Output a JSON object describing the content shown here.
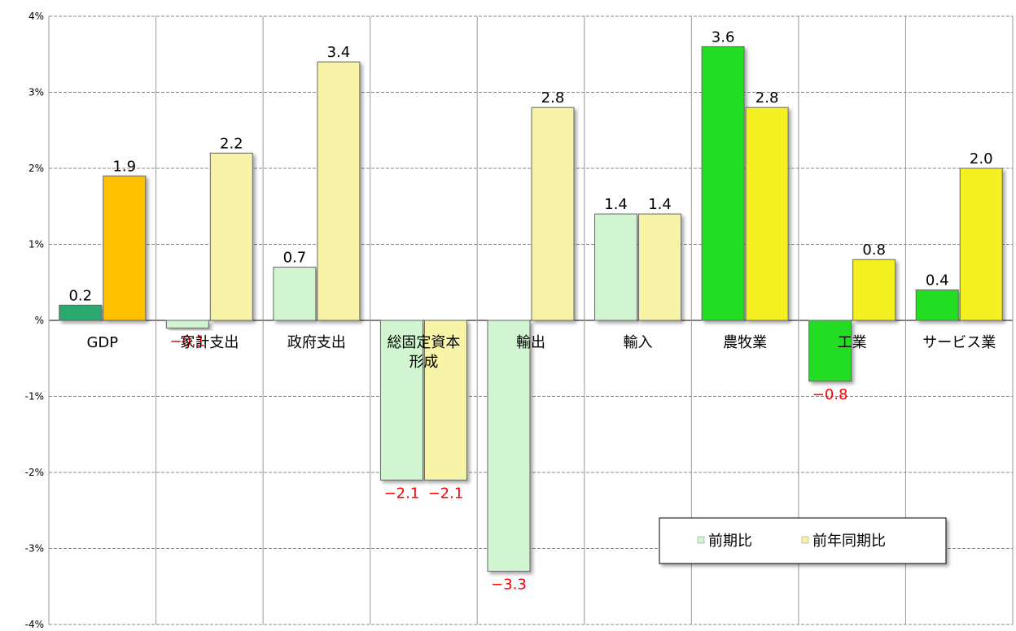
{
  "chart_data": {
    "type": "bar",
    "title": "",
    "xlabel": "",
    "ylabel": "",
    "categories": [
      "GDP",
      "家計支出",
      "政府支出",
      "総固定資本\n形成",
      "輸出",
      "輸入",
      "農牧業",
      "工業",
      "サービス業"
    ],
    "series": [
      {
        "name": "前期比",
        "values": [
          0.2,
          -0.1,
          0.7,
          -2.1,
          -3.3,
          1.4,
          3.6,
          -0.8,
          0.4
        ]
      },
      {
        "name": "前年同期比",
        "values": [
          1.9,
          2.2,
          3.4,
          -2.1,
          2.8,
          1.4,
          2.8,
          0.8,
          2.0
        ]
      }
    ],
    "value_labels": [
      [
        "0.2",
        "−0.1",
        "0.7",
        "−2.1",
        "−3.3",
        "1.4",
        "3.6",
        "−0.8",
        "0.4"
      ],
      [
        "1.9",
        "2.2",
        "3.4",
        "−2.1",
        "2.8",
        "1.4",
        "2.8",
        "0.8",
        "2.0"
      ]
    ],
    "yticks": [
      4,
      3,
      2,
      1,
      0,
      -1,
      -2,
      -3,
      -4
    ],
    "ytick_labels": [
      "4%",
      "3%",
      "2%",
      "1%",
      "%",
      "-1%",
      "-2%",
      "-3%",
      "-4%"
    ],
    "ylim": [
      -4,
      4
    ],
    "grid": true,
    "legend": "bottom-right",
    "series1_colors": [
      "#2aa870",
      "#d0f5d0",
      "#d0f5d0",
      "#d0f5d0",
      "#d0f5d0",
      "#d0f5d0",
      "#22dd22",
      "#22dd22",
      "#22dd22"
    ],
    "series2_colors": [
      "#ffc000",
      "#f7f4a8",
      "#f7f4a8",
      "#f7f4a8",
      "#f7f4a8",
      "#f7f4a8",
      "#f5f020",
      "#f5f020",
      "#f5f020"
    ],
    "positive_label_color": "#000000",
    "negative_label_color": "#ff0000",
    "legend_swatch_colors": [
      "#d0f5d0",
      "#f7f4a8"
    ]
  }
}
